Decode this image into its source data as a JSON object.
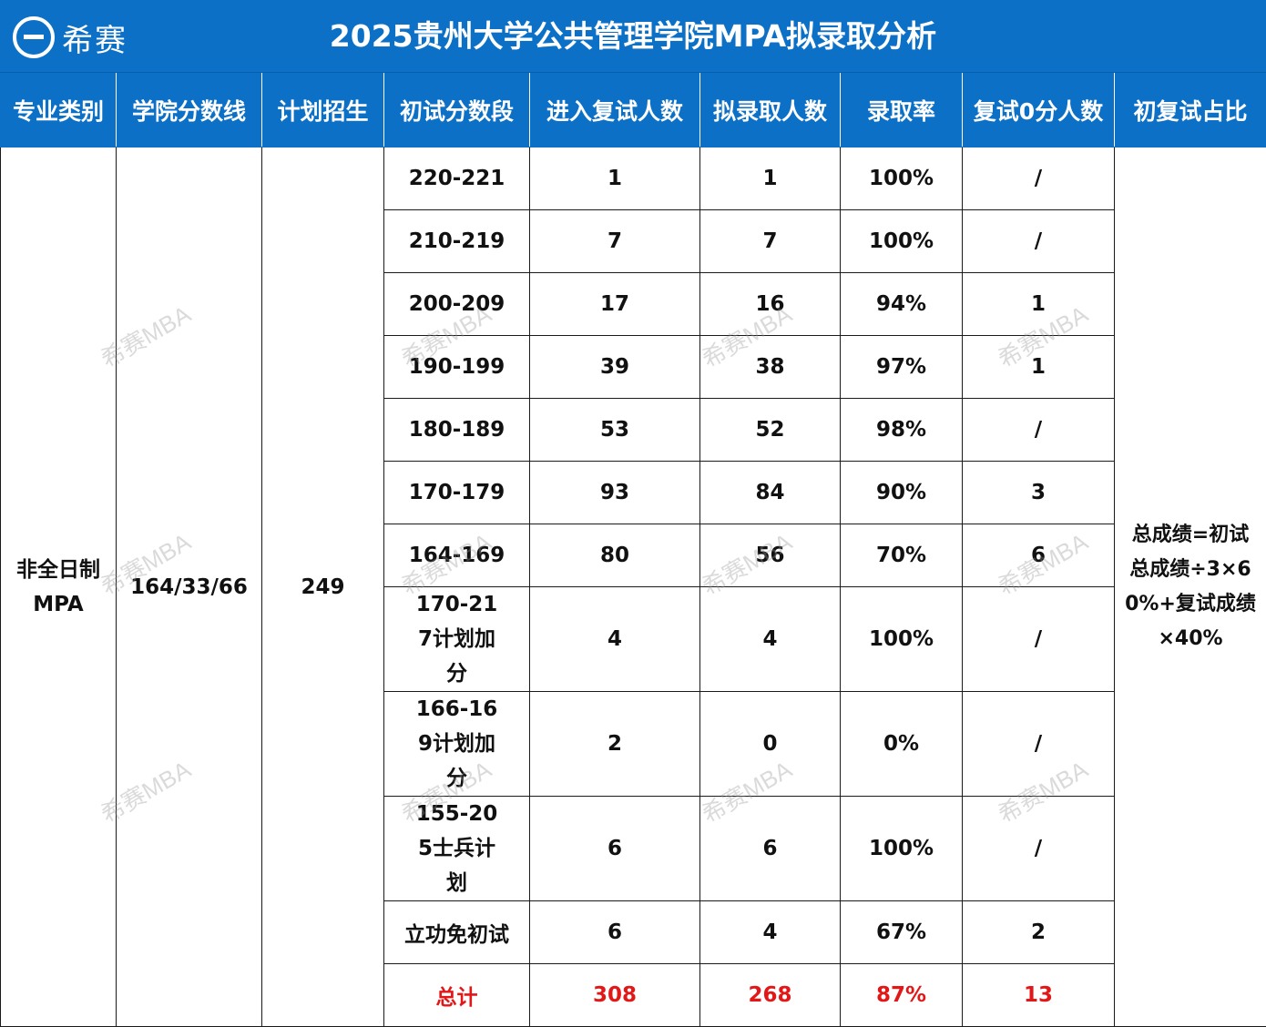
{
  "header": {
    "logo_text": "希赛",
    "title": "2025贵州大学公共管理学院MPA拟录取分析"
  },
  "table": {
    "columns": [
      "专业类别",
      "学院分数线",
      "计划招生",
      "初试分数段",
      "进入复试人数",
      "拟录取人数",
      "录取率",
      "复试0分人数",
      "初复试占比"
    ],
    "major": "非全日制MPA",
    "score_line": "164/33/66",
    "plan": "249",
    "ratio_note": "总成绩=初试总成绩÷3×60%+复试成绩×40%",
    "rows": [
      {
        "range": "220-221",
        "retest": "1",
        "admitted": "1",
        "rate": "100%",
        "zero": "/"
      },
      {
        "range": "210-219",
        "retest": "7",
        "admitted": "7",
        "rate": "100%",
        "zero": "/"
      },
      {
        "range": "200-209",
        "retest": "17",
        "admitted": "16",
        "rate": "94%",
        "zero": "1"
      },
      {
        "range": "190-199",
        "retest": "39",
        "admitted": "38",
        "rate": "97%",
        "zero": "1"
      },
      {
        "range": "180-189",
        "retest": "53",
        "admitted": "52",
        "rate": "98%",
        "zero": "/"
      },
      {
        "range": "170-179",
        "retest": "93",
        "admitted": "84",
        "rate": "90%",
        "zero": "3"
      },
      {
        "range": "164-169",
        "retest": "80",
        "admitted": "56",
        "rate": "70%",
        "zero": "6"
      },
      {
        "range": "170-217计划加分",
        "retest": "4",
        "admitted": "4",
        "rate": "100%",
        "zero": "/"
      },
      {
        "range": "166-169计划加分",
        "retest": "2",
        "admitted": "0",
        "rate": "0%",
        "zero": "/"
      },
      {
        "range": "155-205士兵计划",
        "retest": "6",
        "admitted": "6",
        "rate": "100%",
        "zero": "/"
      },
      {
        "range": "立功免初试",
        "retest": "6",
        "admitted": "4",
        "rate": "67%",
        "zero": "2"
      }
    ],
    "total": {
      "label": "总计",
      "retest": "308",
      "admitted": "268",
      "rate": "87%",
      "zero": "13"
    }
  },
  "watermark": "希赛MBA",
  "colors": {
    "header_bg": "#0c70c7",
    "total_text": "#e21818"
  }
}
